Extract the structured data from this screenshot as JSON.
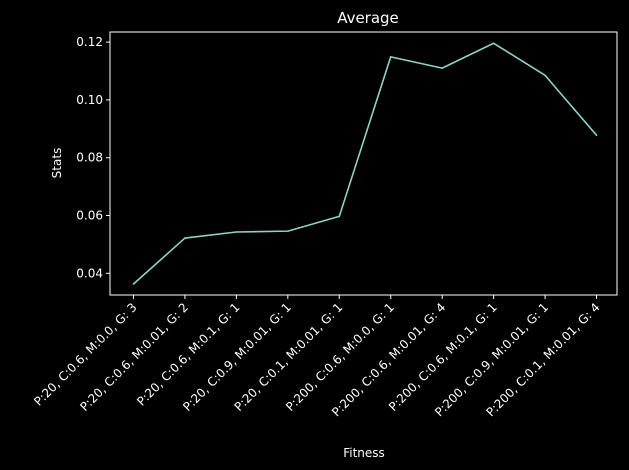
{
  "chart_data": {
    "type": "line",
    "title": "Average",
    "xlabel": "Fitness",
    "ylabel": "Stats",
    "categories": [
      "P:20, C:0.6, M:0.0, G: 3",
      "P:20, C:0.6, M:0.01, G: 2",
      "P:20, C:0.6, M:0.1, G: 1",
      "P:20, C:0.9, M:0.01, G: 1",
      "P:20, C:0.1, M:0.01, G: 1",
      "P:200, C:0.6, M:0.0, G: 1",
      "P:200, C:0.6, M:0.01, G: 4",
      "P:200, C:0.6, M:0.1, G: 1",
      "P:200, C:0.9, M:0.01, G: 1",
      "P:200, C:0.1, M:0.01, G: 4"
    ],
    "series": [
      {
        "values": [
          0.0363,
          0.0522,
          0.0543,
          0.0546,
          0.0597,
          0.1149,
          0.111,
          0.1196,
          0.1085,
          0.0878
        ],
        "color": "#8dd3c7"
      }
    ],
    "ylim": [
      0.0325,
      0.1235
    ],
    "yticks": [
      0.04,
      0.06,
      0.08,
      0.1,
      0.12
    ],
    "ytick_labels": [
      "0.04",
      "0.06",
      "0.08",
      "0.10",
      "0.12"
    ],
    "grid": false,
    "legend": "none",
    "colors": {
      "background": "#000000",
      "axes": "#ffffff",
      "text": "#ffffff"
    }
  }
}
